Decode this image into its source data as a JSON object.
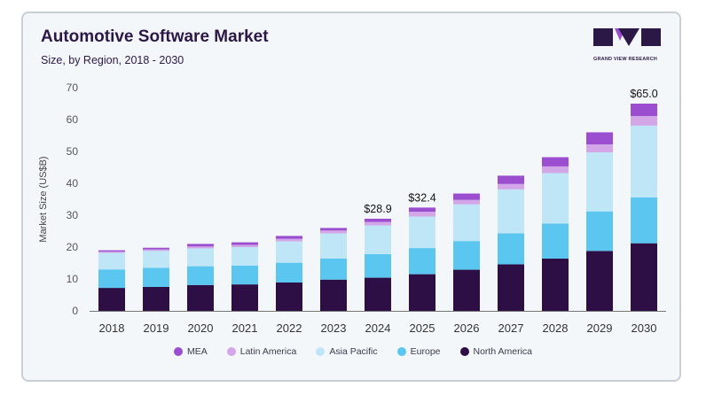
{
  "header": {
    "title": "Automotive Software Market",
    "subtitle": "Size, by Region, 2018 - 2030",
    "brand": "GRAND VIEW RESEARCH"
  },
  "colors": {
    "MEA": "#9b4fd0",
    "Latin America": "#d3a6e8",
    "Asia Pacific": "#bfe6f7",
    "Europe": "#5bc6ef",
    "North America": "#2e0f45",
    "brand": "#2b1846"
  },
  "chart_data": {
    "type": "bar",
    "stacked": true,
    "title": "Automotive Software Market",
    "subtitle": "Size, by Region, 2018 - 2030",
    "xlabel": "",
    "ylabel": "Market Size (US$B)",
    "ylim": [
      0,
      70
    ],
    "yticks": [
      0,
      10,
      20,
      30,
      40,
      50,
      60,
      70
    ],
    "grid": false,
    "legend_position": "bottom",
    "categories": [
      "2018",
      "2019",
      "2020",
      "2021",
      "2022",
      "2023",
      "2024",
      "2025",
      "2026",
      "2027",
      "2028",
      "2029",
      "2030"
    ],
    "series": [
      {
        "name": "North America",
        "values": [
          7.2,
          7.5,
          8.1,
          8.3,
          8.9,
          9.8,
          10.4,
          11.5,
          12.9,
          14.6,
          16.4,
          18.8,
          21.2
        ]
      },
      {
        "name": "Europe",
        "values": [
          5.8,
          6.0,
          5.9,
          5.9,
          6.2,
          6.6,
          7.4,
          8.2,
          9.0,
          9.7,
          11.0,
          12.4,
          14.4
        ]
      },
      {
        "name": "Asia Pacific",
        "values": [
          5.2,
          5.3,
          5.6,
          5.8,
          6.7,
          7.9,
          9.0,
          9.9,
          11.5,
          13.8,
          15.8,
          18.5,
          22.5
        ]
      },
      {
        "name": "Latin America",
        "values": [
          0.4,
          0.5,
          0.6,
          0.7,
          0.8,
          0.9,
          1.1,
          1.5,
          1.4,
          1.7,
          2.1,
          2.5,
          3.0
        ]
      },
      {
        "name": "MEA",
        "values": [
          0.4,
          0.5,
          0.8,
          0.8,
          0.9,
          0.8,
          1.0,
          1.3,
          2.0,
          2.6,
          2.9,
          3.8,
          3.9
        ]
      }
    ],
    "annotations": [
      {
        "category": "2024",
        "label": "$28.9"
      },
      {
        "category": "2025",
        "label": "$32.4"
      },
      {
        "category": "2030",
        "label": "$65.0"
      }
    ]
  }
}
